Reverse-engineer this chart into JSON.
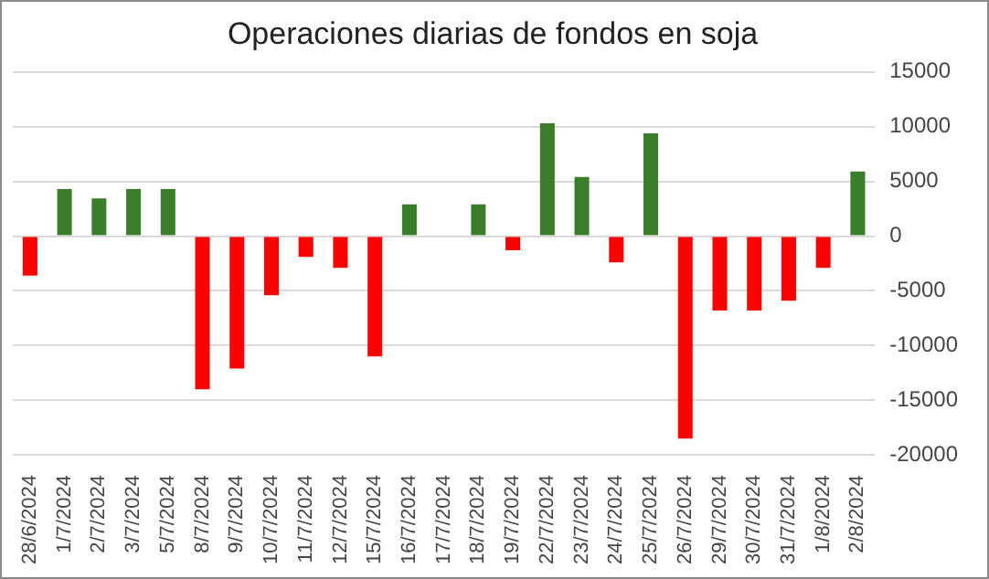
{
  "chart_data": {
    "type": "bar",
    "title": "Operaciones diarias de fondos en soja",
    "categories": [
      "28/6/2024",
      "1/7/2024",
      "2/7/2024",
      "3/7/2024",
      "5/7/2024",
      "8/7/2024",
      "9/7/2024",
      "10/7/2024",
      "11/7/2024",
      "12/7/2024",
      "15/7/2024",
      "16/7/2024",
      "17/7/2024",
      "18/7/2024",
      "19/7/2024",
      "22/7/2024",
      "23/7/2024",
      "24/7/2024",
      "25/7/2024",
      "26/7/2024",
      "29/7/2024",
      "30/7/2024",
      "31/7/2024",
      "1/8/2024",
      "2/8/2024"
    ],
    "values": [
      -3600,
      4300,
      3450,
      4300,
      4300,
      -14000,
      -12100,
      -5400,
      -1900,
      -2900,
      -11000,
      2900,
      0,
      2900,
      -1300,
      10300,
      5400,
      -2400,
      9400,
      -18500,
      -6800,
      -6800,
      -5900,
      -2900,
      5900
    ],
    "colors": [
      "#ff0000",
      "#3a7d2a",
      "#3a7d2a",
      "#3a7d2a",
      "#3a7d2a",
      "#ff0000",
      "#ff0000",
      "#ff0000",
      "#ff0000",
      "#ff0000",
      "#ff0000",
      "#3a7d2a",
      "#3a7d2a",
      "#3a7d2a",
      "#ff0000",
      "#3a7d2a",
      "#3a7d2a",
      "#ff0000",
      "#3a7d2a",
      "#ff0000",
      "#ff0000",
      "#ff0000",
      "#ff0000",
      "#ff0000",
      "#3a7d2a"
    ],
    "ylim": [
      -20000,
      15000
    ],
    "yticks": [
      -20000,
      -15000,
      -10000,
      -5000,
      0,
      5000,
      10000,
      15000
    ],
    "grid": "y"
  }
}
